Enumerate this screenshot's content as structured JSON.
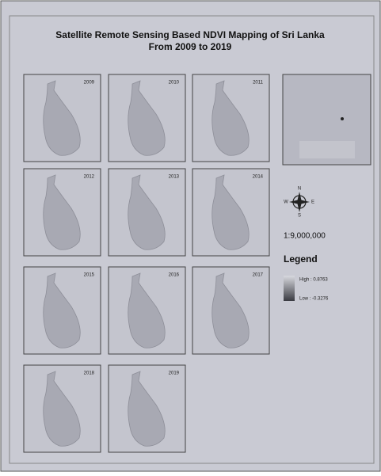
{
  "title": {
    "line1": "Satellite Remote Sensing Based NDVI Mapping of Sri Lanka",
    "line2": "From 2009 to 2019"
  },
  "maps": {
    "years": [
      "2009",
      "2010",
      "2011",
      "2012",
      "2013",
      "2014",
      "2015",
      "2016",
      "2017",
      "2018",
      "2019"
    ]
  },
  "compass": {
    "n": "N",
    "e": "E",
    "s": "S",
    "w": "W"
  },
  "scale": "1:9,000,000",
  "legend": {
    "title": "Legend",
    "high": "High : 0.8763",
    "low": "Low : -0.3276"
  }
}
